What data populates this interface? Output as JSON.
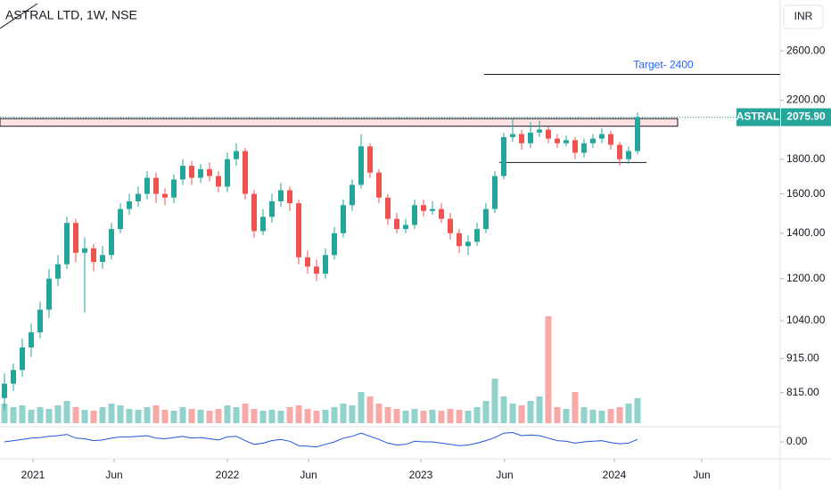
{
  "chart_data": {
    "type": "candlestick",
    "title": "ASTRAL LTD, 1W, NSE",
    "currency": "INR",
    "log_scale": true,
    "ylim": [
      728,
      3090
    ],
    "yticks": [
      {
        "value": 815,
        "label": "815.00"
      },
      {
        "value": 915,
        "label": "915.00"
      },
      {
        "value": 1040,
        "label": "1040.00"
      },
      {
        "value": 1200,
        "label": "1200.00"
      },
      {
        "value": 1400,
        "label": "1400.00"
      },
      {
        "value": 1600,
        "label": "1600.00"
      },
      {
        "value": 1800,
        "label": "1800.00"
      },
      {
        "value": 2200,
        "label": "2200.00"
      },
      {
        "value": 2600,
        "label": "2600.00"
      }
    ],
    "xticks": [
      {
        "value": 3.2,
        "label": "2021"
      },
      {
        "value": 12.3,
        "label": "Jun"
      },
      {
        "value": 25,
        "label": "2022"
      },
      {
        "value": 34.1,
        "label": "Jun"
      },
      {
        "value": 46.7,
        "label": "2023"
      },
      {
        "value": 56.1,
        "label": "Jun"
      },
      {
        "value": 68.4,
        "label": "2024"
      },
      {
        "value": 78.2,
        "label": "Jun"
      }
    ],
    "up_color": "#26a69a",
    "down_color": "#ef5350",
    "open": [
      800,
      840,
      880,
      950,
      1000,
      1080,
      1200,
      1260,
      1450,
      1310,
      1330,
      1270,
      1300,
      1420,
      1520,
      1560,
      1600,
      1690,
      1600,
      1580,
      1680,
      1760,
      1690,
      1740,
      1700,
      1640,
      1800,
      1850,
      1600,
      1410,
      1480,
      1560,
      1620,
      1550,
      1290,
      1250,
      1220,
      1300,
      1400,
      1540,
      1650,
      1880,
      1720,
      1580,
      1470,
      1420,
      1440,
      1540,
      1510,
      1520,
      1470,
      1400,
      1340,
      1360,
      1420,
      1520,
      1700,
      1940,
      1960,
      1900,
      1970,
      1990,
      1930,
      1900,
      1920,
      1840,
      1900,
      1930,
      1960,
      1890,
      1800,
      1850
    ],
    "high": [
      870,
      900,
      980,
      1030,
      1110,
      1240,
      1300,
      1480,
      1470,
      1380,
      1350,
      1340,
      1450,
      1550,
      1600,
      1640,
      1730,
      1720,
      1630,
      1710,
      1800,
      1790,
      1770,
      1780,
      1730,
      1840,
      1900,
      1870,
      1620,
      1520,
      1600,
      1660,
      1640,
      1570,
      1320,
      1280,
      1330,
      1430,
      1570,
      1680,
      1960,
      1900,
      1740,
      1600,
      1500,
      1470,
      1570,
      1570,
      1560,
      1550,
      1500,
      1420,
      1390,
      1450,
      1550,
      1730,
      1970,
      2060,
      1990,
      2040,
      2050,
      2010,
      1960,
      1950,
      1940,
      1930,
      1960,
      2000,
      1980,
      1910,
      1880,
      2110
    ],
    "low": [
      770,
      820,
      860,
      920,
      980,
      1050,
      1170,
      1240,
      1270,
      1070,
      1230,
      1240,
      1280,
      1400,
      1490,
      1530,
      1570,
      1550,
      1540,
      1550,
      1650,
      1650,
      1660,
      1670,
      1610,
      1610,
      1760,
      1570,
      1380,
      1390,
      1450,
      1530,
      1510,
      1260,
      1220,
      1190,
      1200,
      1280,
      1380,
      1510,
      1630,
      1690,
      1550,
      1440,
      1400,
      1400,
      1420,
      1480,
      1490,
      1450,
      1370,
      1310,
      1300,
      1340,
      1400,
      1500,
      1680,
      1910,
      1860,
      1870,
      1940,
      1900,
      1870,
      1880,
      1800,
      1810,
      1870,
      1900,
      1860,
      1760,
      1770,
      1830
    ],
    "close": [
      840,
      880,
      950,
      1000,
      1080,
      1200,
      1260,
      1450,
      1310,
      1330,
      1270,
      1300,
      1420,
      1520,
      1560,
      1600,
      1690,
      1600,
      1580,
      1680,
      1760,
      1690,
      1740,
      1700,
      1640,
      1800,
      1850,
      1600,
      1410,
      1480,
      1560,
      1620,
      1550,
      1290,
      1250,
      1220,
      1300,
      1400,
      1540,
      1650,
      1880,
      1720,
      1580,
      1470,
      1420,
      1440,
      1540,
      1510,
      1520,
      1470,
      1400,
      1340,
      1360,
      1420,
      1520,
      1700,
      1940,
      1960,
      1900,
      1970,
      1990,
      1930,
      1900,
      1920,
      1840,
      1900,
      1930,
      1960,
      1890,
      1800,
      1850,
      2076
    ],
    "volume": [
      22,
      18,
      20,
      15,
      18,
      16,
      20,
      25,
      18,
      15,
      14,
      18,
      22,
      20,
      16,
      15,
      18,
      20,
      15,
      14,
      18,
      16,
      15,
      14,
      16,
      20,
      18,
      22,
      16,
      14,
      15,
      14,
      18,
      20,
      16,
      14,
      15,
      18,
      22,
      20,
      35,
      30,
      22,
      18,
      16,
      14,
      16,
      14,
      15,
      14,
      16,
      15,
      14,
      18,
      25,
      50,
      30,
      22,
      20,
      25,
      30,
      120,
      18,
      16,
      35,
      18,
      15,
      14,
      16,
      18,
      22,
      28
    ],
    "oscillator": {
      "color": "#2054e0",
      "ylim": [
        -1,
        1
      ],
      "yticks": [
        {
          "value": 0,
          "label": "0.00"
        }
      ],
      "values": [
        0,
        0.1,
        0.2,
        0.3,
        0.35,
        0.45,
        0.5,
        0.6,
        0.3,
        0.25,
        0.1,
        0.15,
        0.3,
        0.4,
        0.4,
        0.45,
        0.5,
        0.3,
        0.25,
        0.35,
        0.45,
        0.3,
        0.35,
        0.25,
        0.15,
        0.4,
        0.45,
        0.1,
        -0.2,
        -0.1,
        0.1,
        0.2,
        0.05,
        -0.3,
        -0.35,
        -0.4,
        -0.2,
        0,
        0.3,
        0.45,
        0.7,
        0.45,
        0.2,
        -0.1,
        -0.25,
        -0.2,
        0.05,
        0,
        0,
        -0.1,
        -0.2,
        -0.3,
        -0.25,
        -0.1,
        0.1,
        0.35,
        0.7,
        0.75,
        0.5,
        0.55,
        0.5,
        0.3,
        0.1,
        0.05,
        -0.1,
        0,
        0.05,
        0.1,
        -0.05,
        -0.15,
        -0.1,
        0.2
      ]
    },
    "annotations": {
      "target": {
        "label": "Target- 2400",
        "value": 2400
      },
      "resistance_zone": [
        2013,
        2066
      ],
      "support": 1780,
      "last_price": {
        "symbol": "ASTRAL",
        "value": 2075.9,
        "label": "2075.90"
      }
    }
  }
}
